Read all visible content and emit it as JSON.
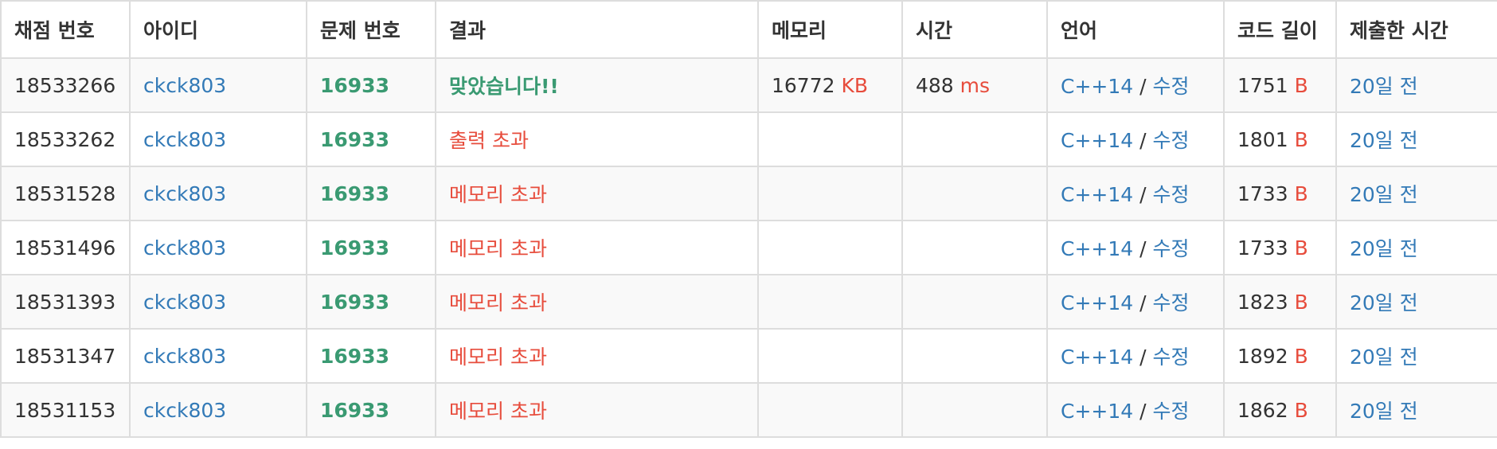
{
  "headers": [
    "채점 번호",
    "아이디",
    "문제 번호",
    "결과",
    "메모리",
    "시간",
    "언어",
    "코드 길이",
    "제출한 시간"
  ],
  "colors": {
    "accepted": "#3a9a72",
    "error": "#e74c3c",
    "link": "#337ab7",
    "text": "#333333",
    "stripe": "#f9f9f9"
  },
  "rows": [
    {
      "submission_id": "18533266",
      "user_id": "ckck803",
      "problem_id": "16933",
      "result": "맞았습니다!!",
      "result_type": "accepted",
      "memory": "16772",
      "memory_unit": "KB",
      "time": "488",
      "time_unit": "ms",
      "language": "C++14",
      "separator": "/",
      "edit": "수정",
      "code_length": "1751",
      "code_unit": "B",
      "submitted": "20일 전"
    },
    {
      "submission_id": "18533262",
      "user_id": "ckck803",
      "problem_id": "16933",
      "result": "출력 초과",
      "result_type": "error",
      "memory": "",
      "memory_unit": "",
      "time": "",
      "time_unit": "",
      "language": "C++14",
      "separator": "/",
      "edit": "수정",
      "code_length": "1801",
      "code_unit": "B",
      "submitted": "20일 전"
    },
    {
      "submission_id": "18531528",
      "user_id": "ckck803",
      "problem_id": "16933",
      "result": "메모리 초과",
      "result_type": "error",
      "memory": "",
      "memory_unit": "",
      "time": "",
      "time_unit": "",
      "language": "C++14",
      "separator": "/",
      "edit": "수정",
      "code_length": "1733",
      "code_unit": "B",
      "submitted": "20일 전"
    },
    {
      "submission_id": "18531496",
      "user_id": "ckck803",
      "problem_id": "16933",
      "result": "메모리 초과",
      "result_type": "error",
      "memory": "",
      "memory_unit": "",
      "time": "",
      "time_unit": "",
      "language": "C++14",
      "separator": "/",
      "edit": "수정",
      "code_length": "1733",
      "code_unit": "B",
      "submitted": "20일 전"
    },
    {
      "submission_id": "18531393",
      "user_id": "ckck803",
      "problem_id": "16933",
      "result": "메모리 초과",
      "result_type": "error",
      "memory": "",
      "memory_unit": "",
      "time": "",
      "time_unit": "",
      "language": "C++14",
      "separator": "/",
      "edit": "수정",
      "code_length": "1823",
      "code_unit": "B",
      "submitted": "20일 전"
    },
    {
      "submission_id": "18531347",
      "user_id": "ckck803",
      "problem_id": "16933",
      "result": "메모리 초과",
      "result_type": "error",
      "memory": "",
      "memory_unit": "",
      "time": "",
      "time_unit": "",
      "language": "C++14",
      "separator": "/",
      "edit": "수정",
      "code_length": "1892",
      "code_unit": "B",
      "submitted": "20일 전"
    },
    {
      "submission_id": "18531153",
      "user_id": "ckck803",
      "problem_id": "16933",
      "result": "메모리 초과",
      "result_type": "error",
      "memory": "",
      "memory_unit": "",
      "time": "",
      "time_unit": "",
      "language": "C++14",
      "separator": "/",
      "edit": "수정",
      "code_length": "1862",
      "code_unit": "B",
      "submitted": "20일 전"
    }
  ]
}
